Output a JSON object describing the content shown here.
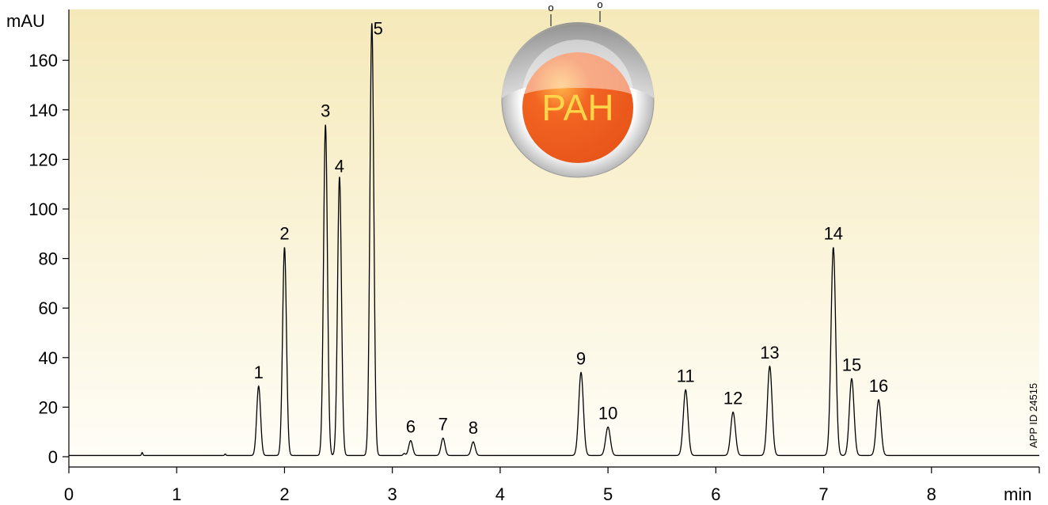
{
  "chart_data": {
    "type": "line",
    "title": "",
    "xlabel": "min",
    "ylabel": "mAU",
    "xlim": [
      0,
      9
    ],
    "ylim": [
      0,
      180
    ],
    "x_ticks": [
      0,
      1,
      2,
      3,
      4,
      5,
      6,
      7,
      8
    ],
    "y_ticks": [
      0,
      20,
      40,
      60,
      80,
      100,
      120,
      140,
      160
    ],
    "grid": false,
    "background": "gradient-yellow-to-white",
    "baseline": 0.5,
    "peaks": [
      {
        "label": "1",
        "x": 1.76,
        "y": 28.5
      },
      {
        "label": "2",
        "x": 2.0,
        "y": 84.5
      },
      {
        "label": "3",
        "x": 2.38,
        "y": 134
      },
      {
        "label": "4",
        "x": 2.51,
        "y": 113
      },
      {
        "label": "5",
        "x": 2.81,
        "y": 175
      },
      {
        "label": "6",
        "x": 3.17,
        "y": 6.5
      },
      {
        "label": "7",
        "x": 3.47,
        "y": 7.5
      },
      {
        "label": "8",
        "x": 3.75,
        "y": 6
      },
      {
        "label": "9",
        "x": 4.75,
        "y": 34
      },
      {
        "label": "10",
        "x": 5.0,
        "y": 12
      },
      {
        "label": "11",
        "x": 5.72,
        "y": 27
      },
      {
        "label": "12",
        "x": 6.16,
        "y": 18
      },
      {
        "label": "13",
        "x": 6.5,
        "y": 36.5
      },
      {
        "label": "14",
        "x": 7.09,
        "y": 84.5
      },
      {
        "label": "15",
        "x": 7.26,
        "y": 31.5
      },
      {
        "label": "16",
        "x": 7.51,
        "y": 23
      }
    ]
  },
  "logo": {
    "text": "PAH",
    "marks": [
      "o",
      "o"
    ]
  },
  "app_id": "APP ID 24515",
  "colors": {
    "bg_top": "#f5e9b9",
    "bg_bottom": "#fffef8",
    "trace": "#000000",
    "logo_orange": "#f26522",
    "logo_text": "#ffd54a"
  }
}
